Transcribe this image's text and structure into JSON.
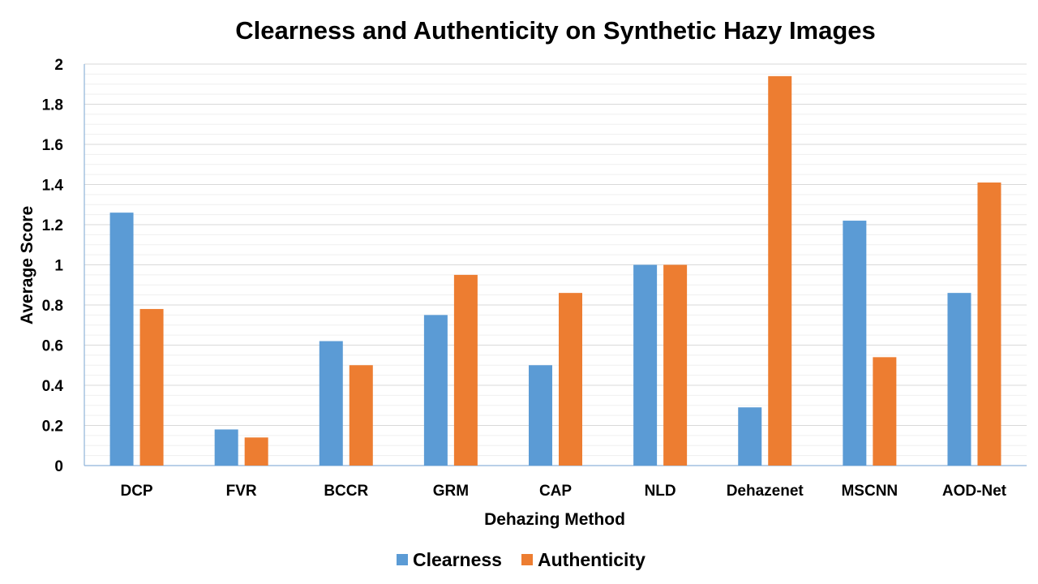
{
  "chart_data": {
    "type": "bar",
    "title": "Clearness and Authenticity on Synthetic Hazy Images",
    "xlabel": "Dehazing Method",
    "ylabel": "Average Score",
    "categories": [
      "DCP",
      "FVR",
      "BCCR",
      "GRM",
      "CAP",
      "NLD",
      "Dehazenet",
      "MSCNN",
      "AOD-Net"
    ],
    "series": [
      {
        "name": "Clearness",
        "color": "#5b9bd5",
        "values": [
          1.26,
          0.18,
          0.62,
          0.75,
          0.5,
          1.0,
          0.29,
          1.22,
          0.86
        ]
      },
      {
        "name": "Authenticity",
        "color": "#ed7d31",
        "values": [
          0.78,
          0.14,
          0.5,
          0.95,
          0.86,
          1.0,
          1.94,
          0.54,
          1.41
        ]
      }
    ],
    "ylim": [
      0,
      2
    ],
    "yticks": [
      "0",
      "0.2",
      "0.4",
      "0.6",
      "0.8",
      "1",
      "1.2",
      "1.4",
      "1.6",
      "1.8",
      "2"
    ],
    "grid": true,
    "legend_position": "bottom"
  }
}
